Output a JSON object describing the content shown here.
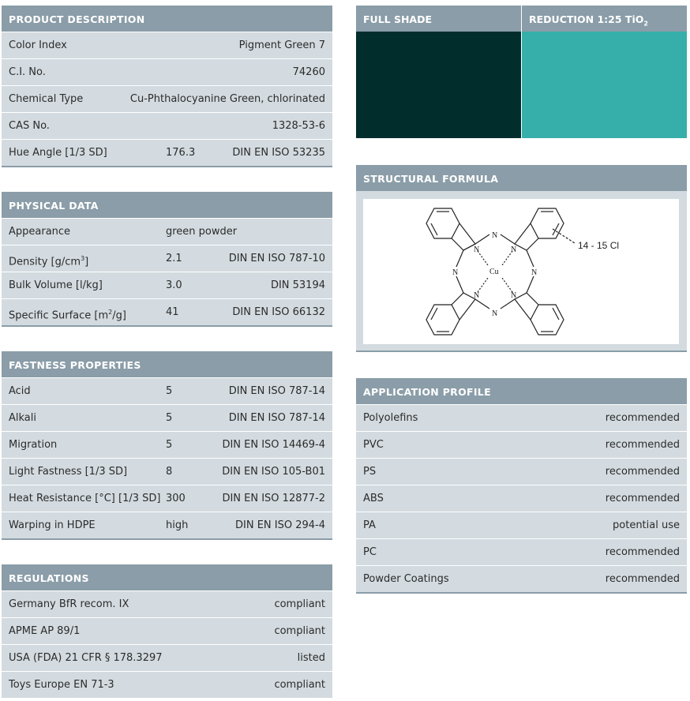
{
  "product_description": {
    "title": "PRODUCT DESCRIPTION",
    "rows": [
      {
        "label": "Color Index",
        "value": "",
        "standard": "Pigment Green 7"
      },
      {
        "label": "C.I. No.",
        "value": "",
        "standard": "74260"
      },
      {
        "label": "Chemical Type",
        "value": "",
        "standard": "Cu-Phthalocyanine Green, chlorinated"
      },
      {
        "label": "CAS No.",
        "value": "",
        "standard": "1328-53-6"
      },
      {
        "label": "Hue Angle [1/3 SD]",
        "value": "176.3",
        "standard": "DIN EN ISO 53235"
      }
    ]
  },
  "physical_data": {
    "title": "PHYSICAL DATA",
    "rows": [
      {
        "label": "Appearance",
        "value": "green powder",
        "standard": ""
      },
      {
        "label_pre": "Density [g/cm",
        "label_sup": "3",
        "label_post": "]",
        "value": "2.1",
        "standard": "DIN EN ISO 787-10"
      },
      {
        "label": "Bulk Volume [l/kg]",
        "value": "3.0",
        "standard": "DIN 53194"
      },
      {
        "label_pre": "Specific Surface [m",
        "label_sup": "2",
        "label_post": "/g]",
        "value": "41",
        "standard": "DIN EN ISO 66132"
      }
    ]
  },
  "fastness_properties": {
    "title": "FASTNESS PROPERTIES",
    "rows": [
      {
        "label": "Acid",
        "value": "5",
        "standard": "DIN EN ISO 787-14"
      },
      {
        "label": "Alkali",
        "value": "5",
        "standard": "DIN EN ISO 787-14"
      },
      {
        "label": "Migration",
        "value": "5",
        "standard": "DIN EN ISO 14469-4"
      },
      {
        "label": "Light Fastness [1/3 SD]",
        "value": "8",
        "standard": "DIN EN ISO 105-B01"
      },
      {
        "label": "Heat Resistance [°C] [1/3 SD]",
        "value": "300",
        "standard": "DIN EN ISO 12877-2"
      },
      {
        "label": "Warping in HDPE",
        "value": "high",
        "standard": "DIN EN ISO 294-4"
      }
    ]
  },
  "regulations": {
    "title": "REGULATIONS",
    "rows": [
      {
        "label": "Germany BfR recom. IX",
        "status": "compliant"
      },
      {
        "label": "APME AP 89/1",
        "status": "compliant"
      },
      {
        "label": "USA (FDA) 21 CFR § 178.3297",
        "status": "listed"
      },
      {
        "label": "Toys Europe EN 71-3",
        "status": "compliant"
      }
    ]
  },
  "shades": {
    "full_shade_label": "FULL SHADE",
    "reduction_label_pre": "REDUCTION 1:25 TiO",
    "reduction_label_sub": "2",
    "full_shade_color": "#022d2d",
    "reduction_color": "#36aea9"
  },
  "structural_formula": {
    "title": "STRUCTURAL FORMULA",
    "atom_N": "N",
    "atom_Cu": "Cu",
    "substituent_label": "14 - 15  Cl"
  },
  "application_profile": {
    "title": "APPLICATION PROFILE",
    "rows": [
      {
        "label": "Polyolefins",
        "status": "recommended"
      },
      {
        "label": "PVC",
        "status": "recommended"
      },
      {
        "label": "PS",
        "status": "recommended"
      },
      {
        "label": "ABS",
        "status": "recommended"
      },
      {
        "label": "PA",
        "status": "potential use"
      },
      {
        "label": "PC",
        "status": "recommended"
      },
      {
        "label": "Powder Coatings",
        "status": "recommended"
      }
    ]
  },
  "colors": {
    "header_bg": "#8a9da8",
    "row_bg": "#d3dbe0"
  }
}
